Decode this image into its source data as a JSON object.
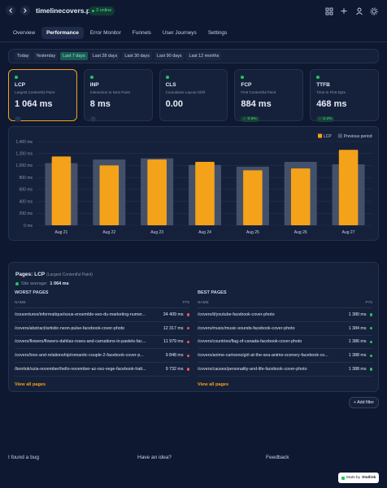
{
  "header": {
    "title": "timelinecovers.pro",
    "online": "3 online"
  },
  "tabs": [
    "Overview",
    "Performance",
    "Error Monitor",
    "Funnels",
    "User Journeys",
    "Settings"
  ],
  "active_tab": 1,
  "ranges": [
    "Today",
    "Yesterday",
    "Last 7 days",
    "Last 28 days",
    "Last 30 days",
    "Last 90 days",
    "Last 12 months"
  ],
  "active_range": 2,
  "metrics": [
    {
      "name": "LCP",
      "subtitle": "Largest Contentful Paint",
      "value": "1 064 ms",
      "delta": "-"
    },
    {
      "name": "INP",
      "subtitle": "Interaction to Next Paint",
      "value": "8 ms",
      "delta": "-"
    },
    {
      "name": "CLS",
      "subtitle": "Cumulative Layout Shift",
      "value": "0.00"
    },
    {
      "name": "FCP",
      "subtitle": "First Contentful Paint",
      "value": "884 ms",
      "delta": "↓ -0.5%"
    },
    {
      "name": "TTFB",
      "subtitle": "Time to First Byte",
      "value": "468 ms",
      "delta": "↓ -2.2%"
    }
  ],
  "chart_data": {
    "type": "bar",
    "categories": [
      "Aug 21",
      "Aug 22",
      "Aug 23",
      "Aug 24",
      "Aug 25",
      "Aug 26",
      "Aug 27"
    ],
    "series": [
      {
        "name": "LCP",
        "color": "#f5a21b",
        "values": [
          1150,
          1000,
          1100,
          1060,
          920,
          950,
          1260
        ]
      },
      {
        "name": "Previous period",
        "color": "#4b5873",
        "values": [
          1040,
          1100,
          1120,
          1010,
          980,
          1060,
          1020
        ]
      }
    ],
    "ylim": [
      0,
      1400
    ],
    "yticks": [
      {
        "value": 0,
        "label": "0 ms"
      },
      {
        "value": 200,
        "label": "200 ms"
      },
      {
        "value": 400,
        "label": "400 ms"
      },
      {
        "value": 600,
        "label": "600 ms"
      },
      {
        "value": 800,
        "label": "800 ms"
      },
      {
        "value": 1000,
        "label": "1,000 ms"
      },
      {
        "value": 1200,
        "label": "1,200 ms"
      },
      {
        "value": 1400,
        "label": "1,400 ms"
      }
    ],
    "grid": true,
    "legend": "top-right"
  },
  "pages": {
    "title": "Pages: LCP",
    "subtitle": "(Largest Contentful Paint)",
    "site_average_label": "Site average:",
    "site_average": "1 064 ms",
    "worst": {
      "title": "WORST PAGES",
      "name_header": "NAME",
      "value_header": "P75",
      "view_all": "View all pages",
      "rows": [
        [
          "/couvertures/informatique/sous-ensemble-seo-du-marketing-numer...",
          "34 409 ms"
        ],
        [
          "/covers/abstract/artistic-neon-pulse-facebook-cover-photo",
          "12 317 ms"
        ],
        [
          "/covers/flowers/flowers-dahlias-roses-and-carnations-in-pastels-fac...",
          "11 979 ms"
        ],
        [
          "/covers/love-and-relationship/romantic-couple-2-facebook-cover-p...",
          "9 848 ms"
        ],
        [
          "/bonitok/szia-november/hello-november-az-osz-vege-facebook-hatt...",
          "9 732 ms"
        ]
      ]
    },
    "best": {
      "title": "BEST PAGES",
      "name_header": "NAME",
      "value_header": "P75",
      "view_all": "View all pages",
      "rows": [
        [
          "/covers/it/youtube-facebook-cover-photo",
          "1 380 ms"
        ],
        [
          "/covers/music/music-sounds-facebook-cover-photo",
          "1 384 ms"
        ],
        [
          "/covers/countries/flag-of-canada-facebook-cover-photo",
          "1 386 ms"
        ],
        [
          "/covers/anime-cartoons/girl-at-the-sea-anime-scenery-facebook-co...",
          "1 388 ms"
        ],
        [
          "/covers/causes/personality-and-life-facebook-cover-photo",
          "1 388 ms"
        ]
      ]
    }
  },
  "add_filter": "+ Add filter",
  "footer": {
    "links": [
      "I found a bug",
      "Have an idea?",
      "Feedback"
    ],
    "badge_prefix": "Stats by",
    "badge_brand": "Statlink"
  }
}
